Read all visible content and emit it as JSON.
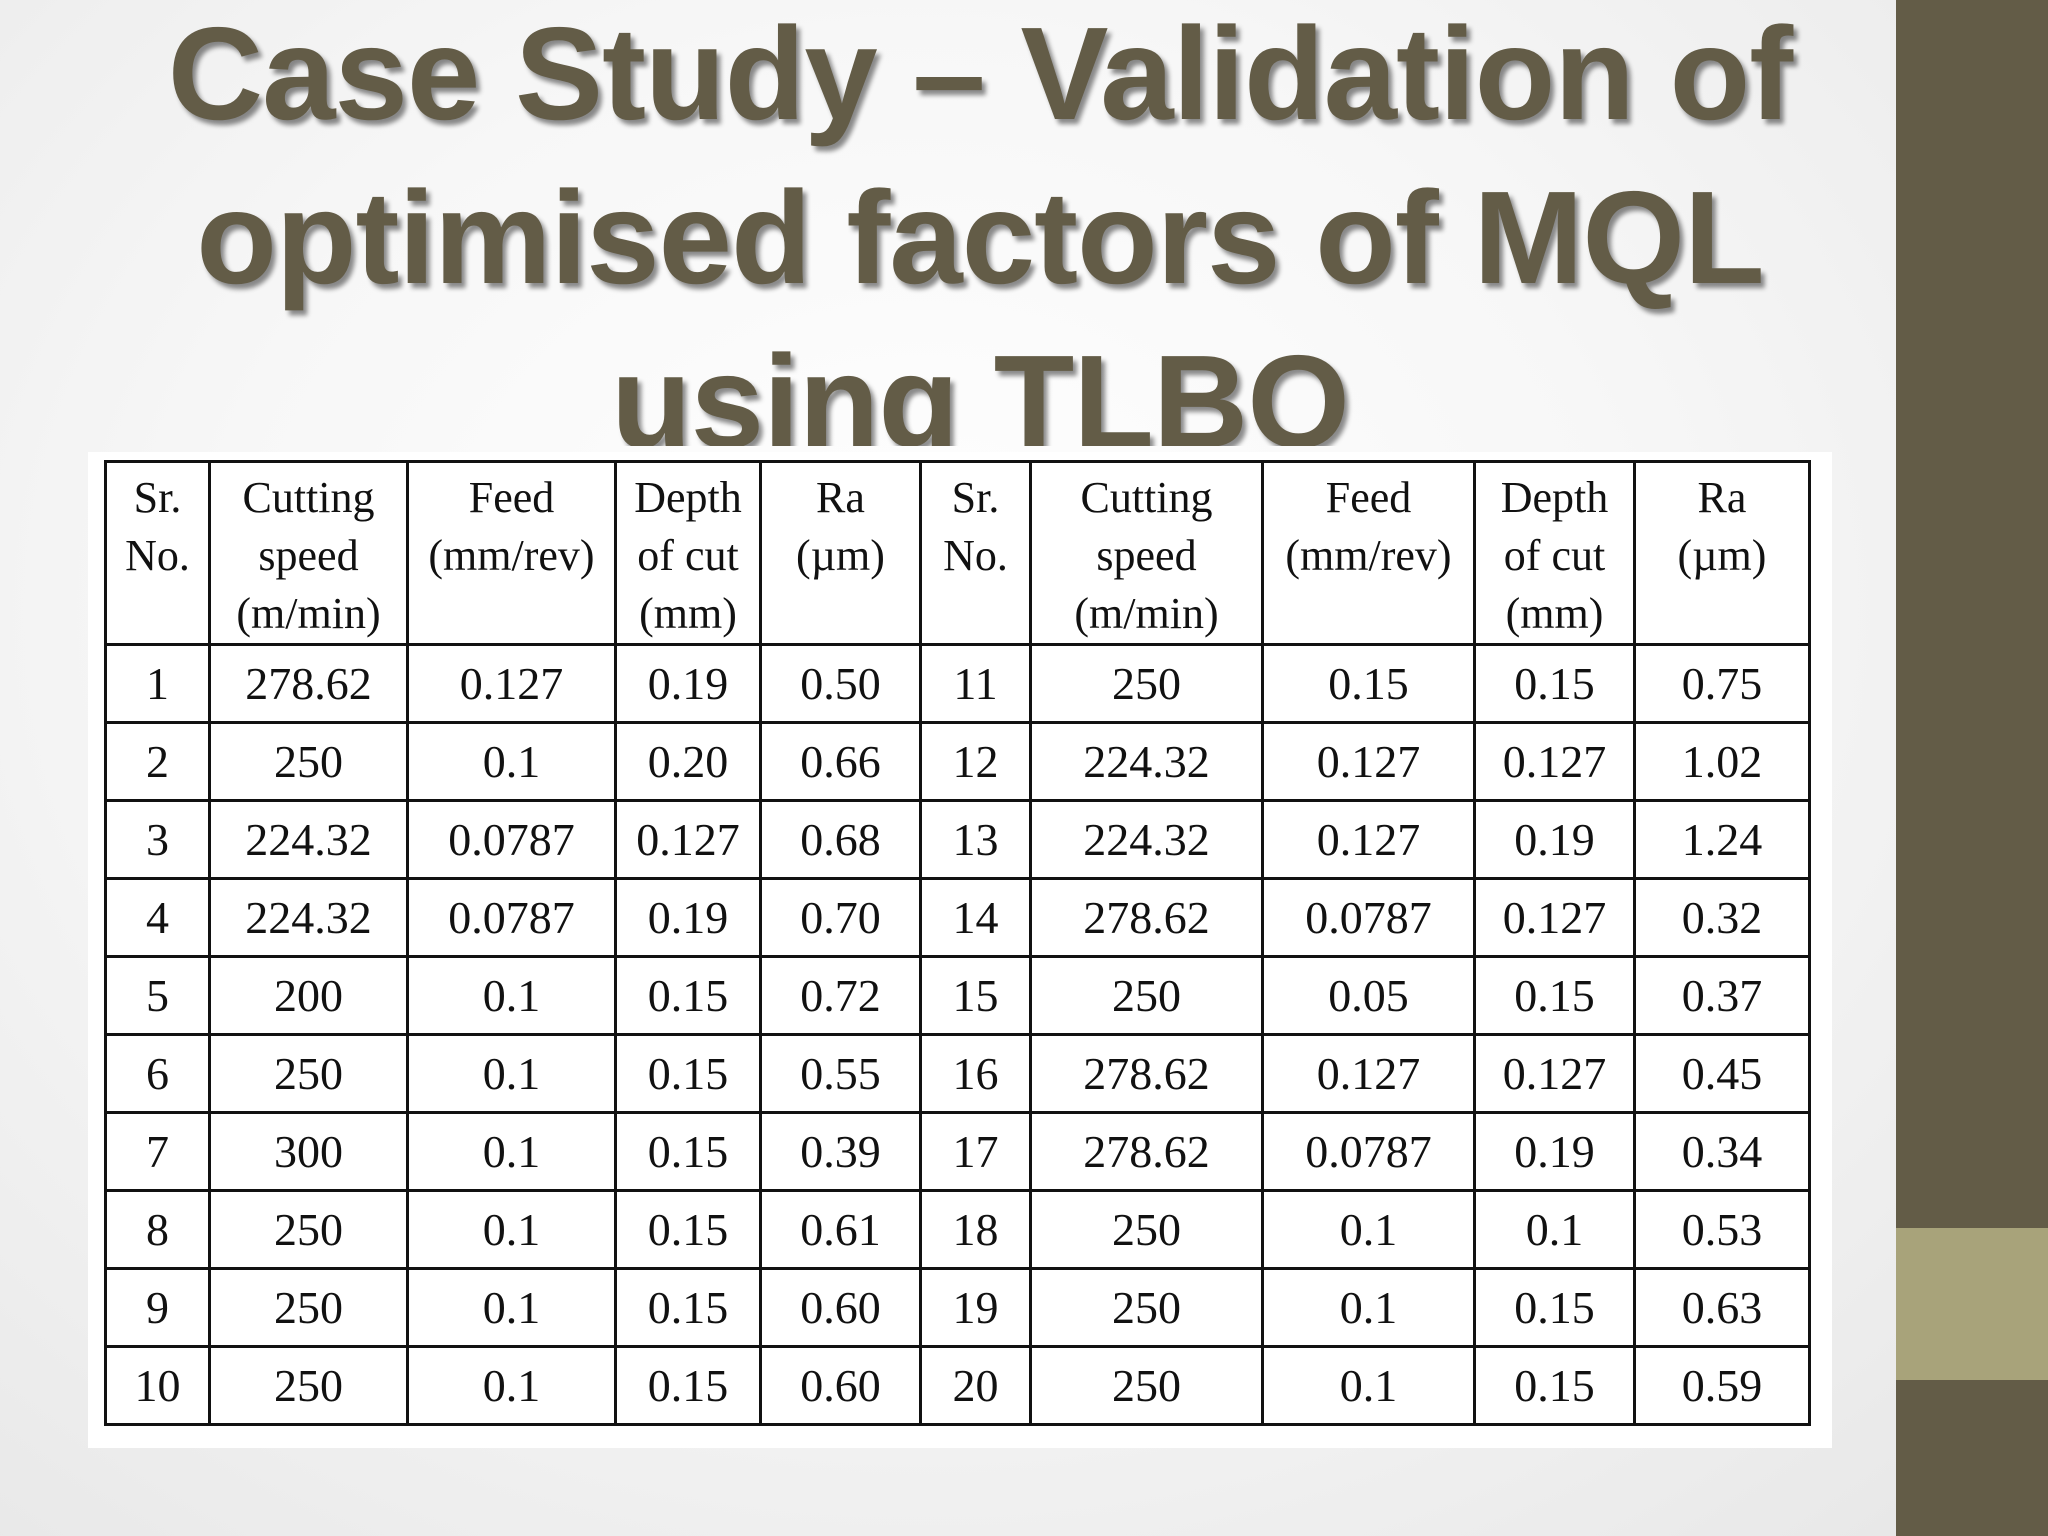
{
  "colors": {
    "title": "#635c47",
    "side_bar": "#635c47",
    "side_accent": "#a8a37a"
  },
  "slide": {
    "title_lines": [
      "Case Study – Validation of",
      "optimised factors of MQL",
      "using TLBO"
    ]
  },
  "table": {
    "headers": [
      [
        "Sr.",
        "No."
      ],
      [
        "Cutting",
        "speed",
        "(m/min)"
      ],
      [
        "Feed",
        "(mm/rev)"
      ],
      [
        "Depth",
        "of cut",
        "(mm)"
      ],
      [
        "Ra",
        "(µm)"
      ],
      [
        "Sr.",
        "No."
      ],
      [
        "Cutting",
        "speed",
        "(m/min)"
      ],
      [
        "Feed",
        "(mm/rev)"
      ],
      [
        "Depth",
        "of cut",
        "(mm)"
      ],
      [
        "Ra",
        "(µm)"
      ]
    ],
    "rows": [
      [
        "1",
        "278.62",
        "0.127",
        "0.19",
        "0.50",
        "11",
        "250",
        "0.15",
        "0.15",
        "0.75"
      ],
      [
        "2",
        "250",
        "0.1",
        "0.20",
        "0.66",
        "12",
        "224.32",
        "0.127",
        "0.127",
        "1.02"
      ],
      [
        "3",
        "224.32",
        "0.0787",
        "0.127",
        "0.68",
        "13",
        "224.32",
        "0.127",
        "0.19",
        "1.24"
      ],
      [
        "4",
        "224.32",
        "0.0787",
        "0.19",
        "0.70",
        "14",
        "278.62",
        "0.0787",
        "0.127",
        "0.32"
      ],
      [
        "5",
        "200",
        "0.1",
        "0.15",
        "0.72",
        "15",
        "250",
        "0.05",
        "0.15",
        "0.37"
      ],
      [
        "6",
        "250",
        "0.1",
        "0.15",
        "0.55",
        "16",
        "278.62",
        "0.127",
        "0.127",
        "0.45"
      ],
      [
        "7",
        "300",
        "0.1",
        "0.15",
        "0.39",
        "17",
        "278.62",
        "0.0787",
        "0.19",
        "0.34"
      ],
      [
        "8",
        "250",
        "0.1",
        "0.15",
        "0.61",
        "18",
        "250",
        "0.1",
        "0.1",
        "0.53"
      ],
      [
        "9",
        "250",
        "0.1",
        "0.15",
        "0.60",
        "19",
        "250",
        "0.1",
        "0.15",
        "0.63"
      ],
      [
        "10",
        "250",
        "0.1",
        "0.15",
        "0.60",
        "20",
        "250",
        "0.1",
        "0.15",
        "0.59"
      ]
    ]
  }
}
